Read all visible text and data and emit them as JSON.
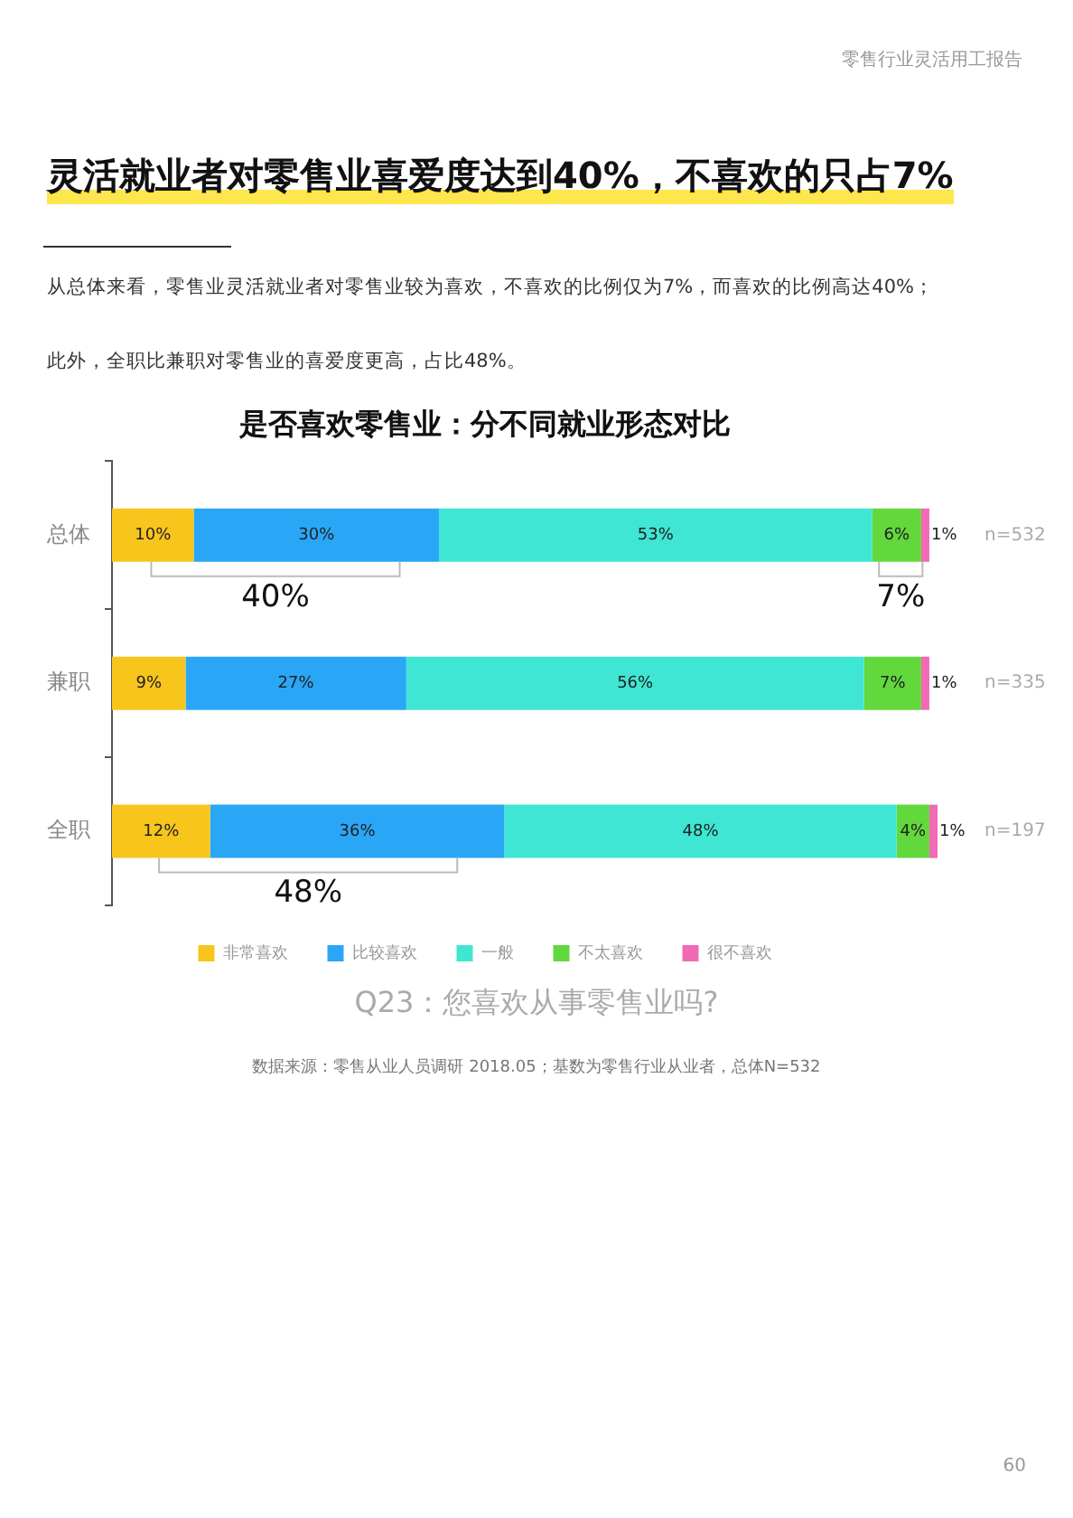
{
  "chart_data": {
    "type": "bar",
    "orientation": "horizontal",
    "stacked": true,
    "title": "是否喜欢零售业：分不同就业形态对比",
    "categories": [
      "总体",
      "兼职",
      "全职"
    ],
    "series": [
      {
        "name": "非常喜欢",
        "color": "#f7c51c",
        "values": [
          10,
          9,
          12
        ],
        "value_labels": [
          "10%",
          "9%",
          "12%"
        ]
      },
      {
        "name": "比较喜欢",
        "color": "#2aa6f7",
        "values": [
          30,
          27,
          36
        ],
        "value_labels": [
          "30%",
          "27%",
          "36%"
        ]
      },
      {
        "name": "一般",
        "color": "#3fe6d3",
        "values": [
          53,
          56,
          48
        ],
        "value_labels": [
          "53%",
          "56%",
          "48%"
        ]
      },
      {
        "name": "不太喜欢",
        "color": "#62d83c",
        "values": [
          6,
          7,
          4
        ],
        "value_labels": [
          "6%",
          "7%",
          "4%"
        ]
      },
      {
        "name": "很不喜欢",
        "color": "#f06ab4",
        "values": [
          1,
          1,
          1
        ],
        "value_labels": [
          "1%",
          "1%",
          "1%"
        ]
      }
    ],
    "xlim": [
      0,
      101
    ],
    "tick_labels": "y",
    "grid": false,
    "legend": "bottom",
    "annotations": [
      "零售行业灵活用工报告",
      "灵活就业者对零售业喜爱度达到40%，不喜欢的只占7%",
      "从总体来看，零售业灵活就业者对零售业较为喜欢，不喜欢的比例仅为7%，而喜欢的比例高达40%；",
      "此外，全职比兼职对零售业的喜爱度更高，占比48%。",
      "n=532",
      "n=335",
      "n=197",
      "40%",
      "7%",
      "48%",
      "Q23：您喜欢从事零售业吗?",
      "数据来源：零售从业人员调研 2018.05；基数为零售行业从业者，总体N=532",
      "60"
    ]
  }
}
